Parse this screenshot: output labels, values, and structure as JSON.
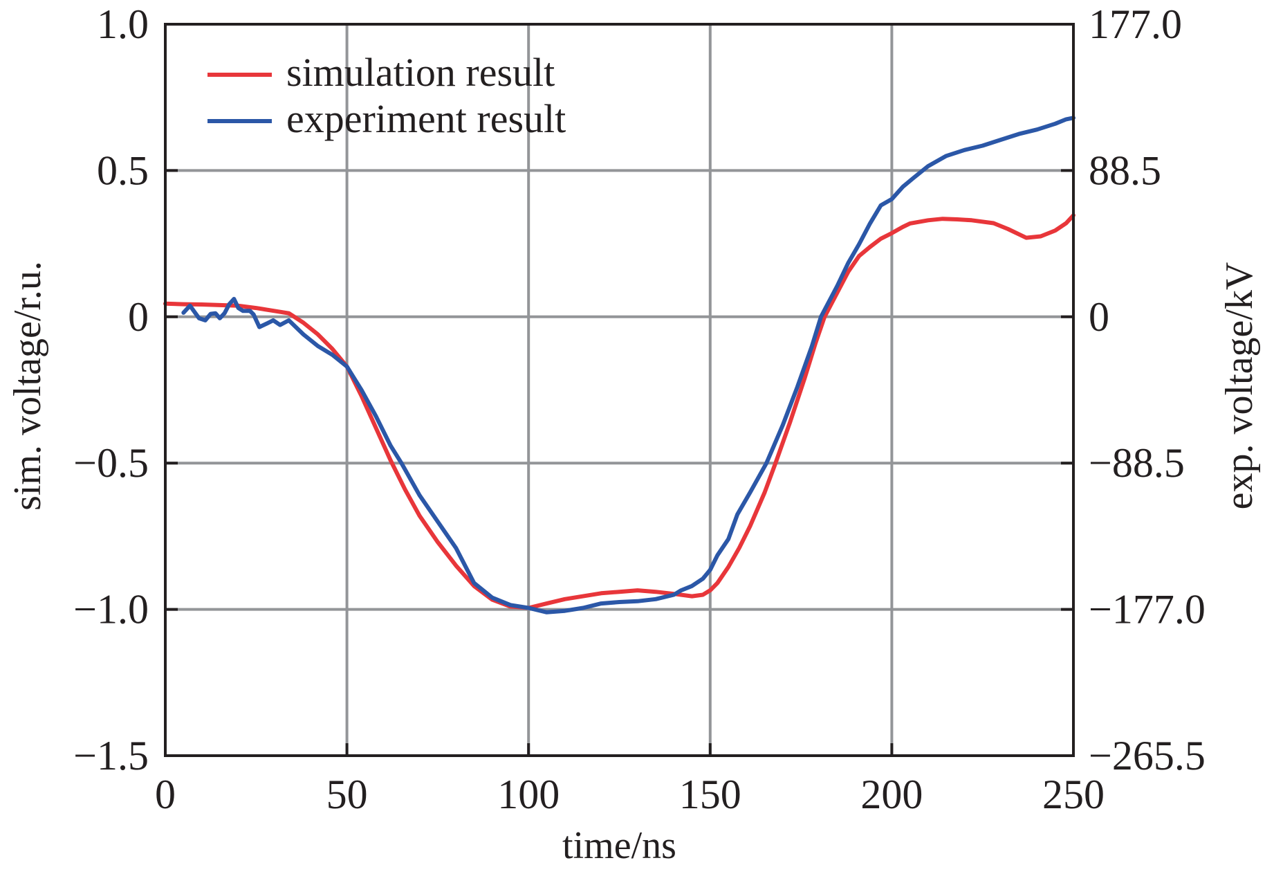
{
  "chart_data": {
    "type": "line",
    "title": "",
    "xlabel": "time/ns",
    "ylabel": "sim. voltage/r.u.",
    "ylabel_right": "exp. voltage/kV",
    "xlim": [
      0,
      250
    ],
    "ylim": [
      -1.5,
      1.0
    ],
    "ylim_right": [
      -265.5,
      177.0
    ],
    "grid": true,
    "legend_position": "top-left",
    "x_ticks": [
      0,
      50,
      100,
      150,
      200,
      250
    ],
    "x_tick_labels": [
      "0",
      "50",
      "100",
      "150",
      "200",
      "250"
    ],
    "y_ticks": [
      1.0,
      0.5,
      0,
      -0.5,
      -1.0,
      -1.5
    ],
    "y_tick_labels": [
      "1.0",
      "0.5",
      "0",
      "−0.5",
      "−1.0",
      "−1.5"
    ],
    "y_right_tick_labels": [
      "177.0",
      "88.5",
      "0",
      "−88.5",
      "−177.0",
      "−265.5"
    ],
    "series": [
      {
        "name": "simulation result",
        "color": "#e8363a",
        "x": [
          0,
          5,
          10,
          15,
          20,
          25,
          30,
          34,
          38,
          42,
          46,
          50,
          54,
          58,
          62,
          66,
          70,
          75,
          80,
          85,
          90,
          95,
          100,
          105,
          110,
          115,
          120,
          125,
          130,
          135,
          140,
          145,
          148,
          150,
          152,
          155,
          158,
          161,
          165,
          168,
          172,
          176,
          179,
          181.5,
          185,
          188,
          191,
          194,
          197,
          200,
          203,
          205,
          210,
          214,
          218,
          222,
          228,
          232,
          237,
          241,
          245,
          248,
          250
        ],
        "y": [
          0.045,
          0.043,
          0.042,
          0.04,
          0.038,
          0.03,
          0.02,
          0.012,
          -0.02,
          -0.06,
          -0.11,
          -0.17,
          -0.27,
          -0.38,
          -0.49,
          -0.59,
          -0.68,
          -0.77,
          -0.85,
          -0.92,
          -0.967,
          -0.99,
          -0.995,
          -0.98,
          -0.965,
          -0.955,
          -0.945,
          -0.94,
          -0.935,
          -0.94,
          -0.947,
          -0.955,
          -0.95,
          -0.935,
          -0.91,
          -0.855,
          -0.79,
          -0.715,
          -0.6,
          -0.5,
          -0.36,
          -0.21,
          -0.09,
          0.0,
          0.083,
          0.154,
          0.208,
          0.239,
          0.267,
          0.286,
          0.307,
          0.319,
          0.33,
          0.335,
          0.333,
          0.33,
          0.32,
          0.3,
          0.27,
          0.275,
          0.295,
          0.32,
          0.347
        ]
      },
      {
        "name": "experiment result",
        "color": "#2b57a7",
        "x": [
          5,
          6.8,
          9.3,
          11,
          12.5,
          13.8,
          15,
          16.3,
          17.6,
          18.9,
          20.1,
          21.4,
          23.3,
          24.3,
          25.9,
          27.8,
          29.7,
          31.6,
          34,
          38,
          42,
          46,
          50,
          54,
          58,
          62,
          65,
          70,
          75,
          80,
          85,
          90,
          95,
          100,
          105,
          110,
          115,
          120,
          125,
          130,
          135,
          140,
          142,
          145,
          148,
          150,
          152,
          155,
          157.5,
          161,
          165.5,
          170,
          174,
          178,
          180.5,
          185,
          188,
          191,
          194,
          197,
          200,
          203,
          206,
          210,
          215,
          220,
          225,
          230,
          235,
          240,
          245,
          248,
          250
        ],
        "y": [
          0.014,
          0.038,
          -0.005,
          -0.012,
          0.01,
          0.012,
          -0.005,
          0.012,
          0.043,
          0.061,
          0.03,
          0.02,
          0.02,
          0.008,
          -0.035,
          -0.024,
          -0.012,
          -0.028,
          -0.012,
          -0.06,
          -0.1,
          -0.13,
          -0.17,
          -0.25,
          -0.34,
          -0.44,
          -0.5,
          -0.61,
          -0.7,
          -0.79,
          -0.91,
          -0.96,
          -0.985,
          -0.995,
          -1.01,
          -1.005,
          -0.995,
          -0.98,
          -0.975,
          -0.972,
          -0.965,
          -0.95,
          -0.935,
          -0.92,
          -0.895,
          -0.865,
          -0.815,
          -0.76,
          -0.675,
          -0.6,
          -0.5,
          -0.37,
          -0.24,
          -0.1,
          0.0,
          0.106,
          0.184,
          0.248,
          0.319,
          0.381,
          0.402,
          0.444,
          0.475,
          0.515,
          0.55,
          0.57,
          0.585,
          0.605,
          0.625,
          0.64,
          0.66,
          0.675,
          0.68
        ]
      }
    ]
  }
}
